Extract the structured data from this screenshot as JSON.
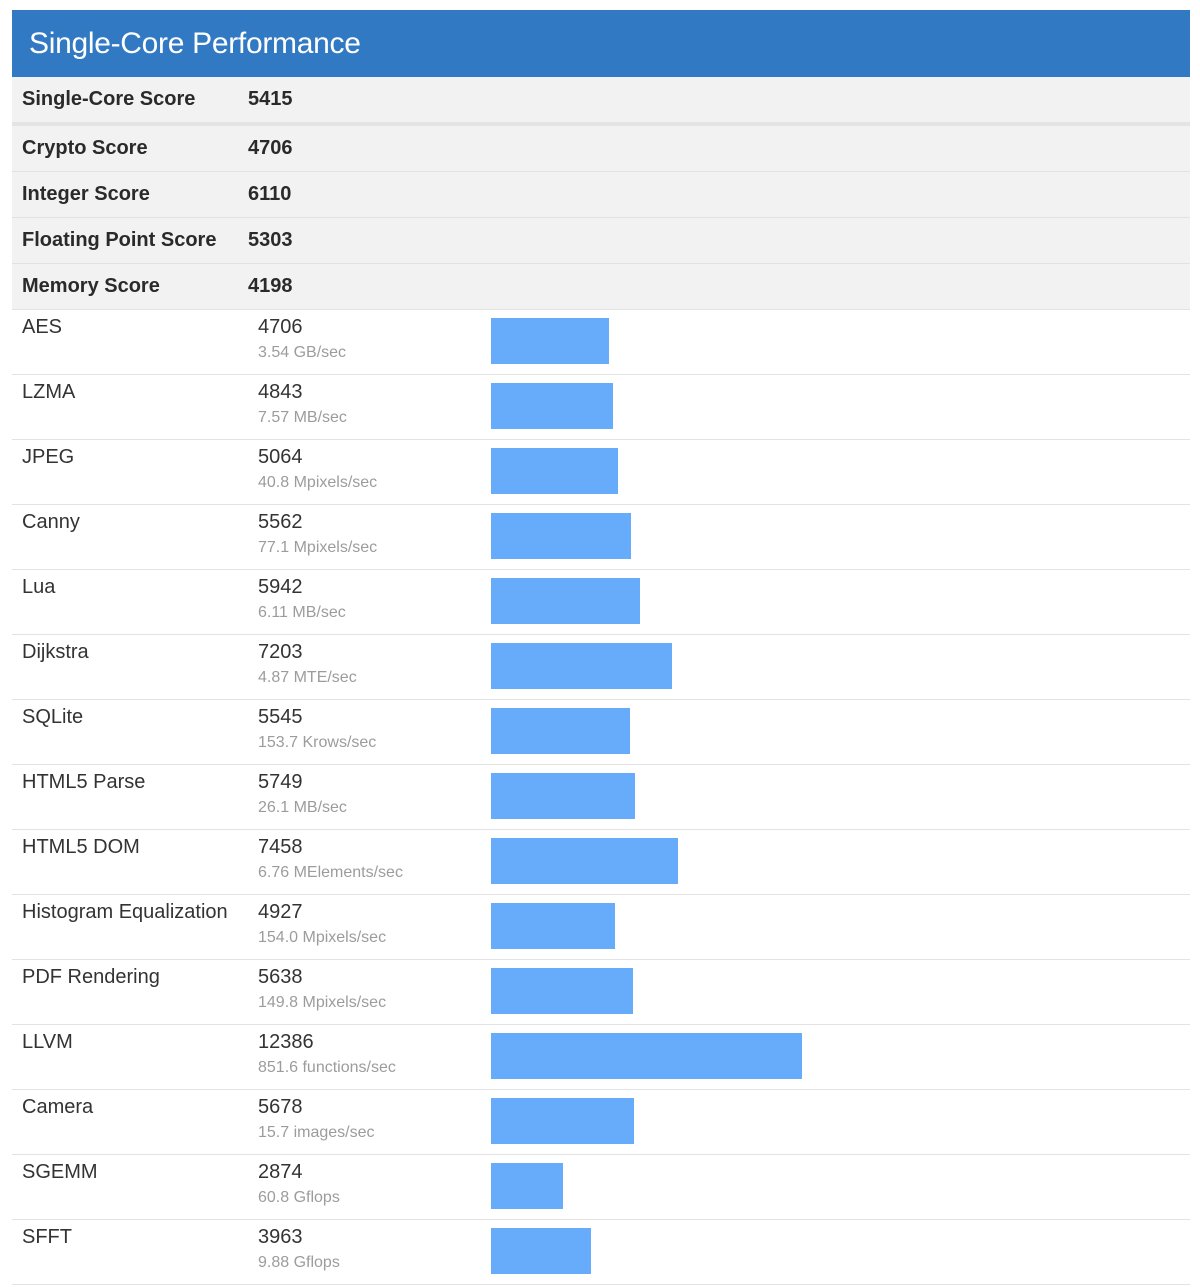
{
  "header": {
    "title": "Single-Core Performance"
  },
  "summary": [
    {
      "label": "Single-Core Score",
      "value": "5415"
    },
    {
      "label": "Crypto Score",
      "value": "4706"
    },
    {
      "label": "Integer Score",
      "value": "6110"
    },
    {
      "label": "Floating Point Score",
      "value": "5303"
    },
    {
      "label": "Memory Score",
      "value": "4198"
    }
  ],
  "benchmarks": [
    {
      "name": "AES",
      "score": "4706",
      "rate": "3.54 GB/sec"
    },
    {
      "name": "LZMA",
      "score": "4843",
      "rate": "7.57 MB/sec"
    },
    {
      "name": "JPEG",
      "score": "5064",
      "rate": "40.8 Mpixels/sec"
    },
    {
      "name": "Canny",
      "score": "5562",
      "rate": "77.1 Mpixels/sec"
    },
    {
      "name": "Lua",
      "score": "5942",
      "rate": "6.11 MB/sec"
    },
    {
      "name": "Dijkstra",
      "score": "7203",
      "rate": "4.87 MTE/sec"
    },
    {
      "name": "SQLite",
      "score": "5545",
      "rate": "153.7 Krows/sec"
    },
    {
      "name": "HTML5 Parse",
      "score": "5749",
      "rate": "26.1 MB/sec"
    },
    {
      "name": "HTML5 DOM",
      "score": "7458",
      "rate": "6.76 MElements/sec"
    },
    {
      "name": "Histogram Equalization",
      "score": "4927",
      "rate": "154.0 Mpixels/sec"
    },
    {
      "name": "PDF Rendering",
      "score": "5638",
      "rate": "149.8 Mpixels/sec"
    },
    {
      "name": "LLVM",
      "score": "12386",
      "rate": "851.6 functions/sec"
    },
    {
      "name": "Camera",
      "score": "5678",
      "rate": "15.7 images/sec"
    },
    {
      "name": "SGEMM",
      "score": "2874",
      "rate": "60.8 Gflops"
    },
    {
      "name": "SFFT",
      "score": "3963",
      "rate": "9.88 Gflops"
    }
  ],
  "colors": {
    "header_bg": "#3179c2",
    "bar": "#66acfa",
    "summary_bg": "#f2f2f2"
  }
}
